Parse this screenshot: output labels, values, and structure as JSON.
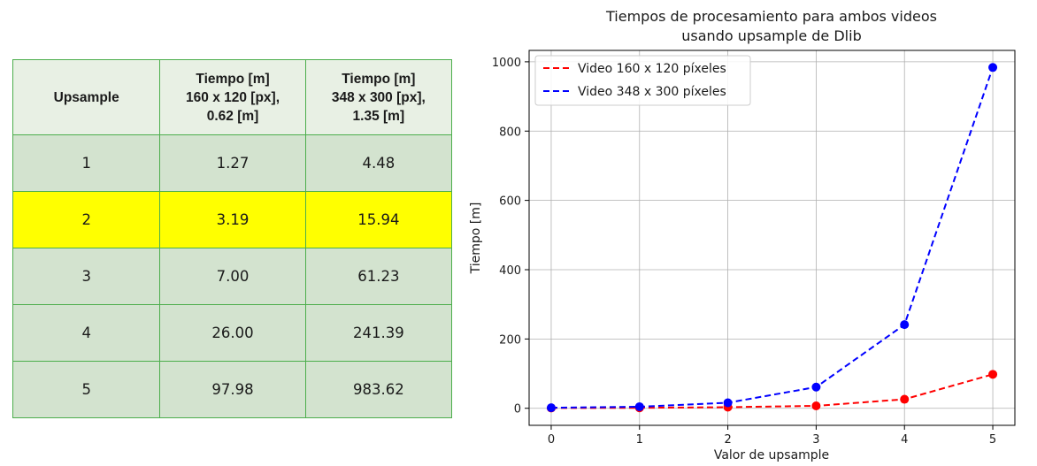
{
  "table": {
    "headers": [
      [
        "Upsample"
      ],
      [
        "Tiempo [m]",
        "160 x 120 [px],",
        "0.62 [m]"
      ],
      [
        "Tiempo [m]",
        "348 x 300 [px],",
        "1.35 [m]"
      ]
    ],
    "rows": [
      [
        "1",
        "1.27",
        "4.48"
      ],
      [
        "2",
        "3.19",
        "15.94"
      ],
      [
        "3",
        "7.00",
        "61.23"
      ],
      [
        "4",
        "26.00",
        "241.39"
      ],
      [
        "5",
        "97.98",
        "983.62"
      ]
    ],
    "highlight_row": 1,
    "highlight_color": "#ffff00"
  },
  "chart_data": {
    "type": "line",
    "title": [
      "Tiempos de procesamiento para ambos videos",
      "usando upsample de Dlib"
    ],
    "xlabel": "Valor de upsample",
    "ylabel": "Tiempo [m]",
    "x": [
      0,
      1,
      2,
      3,
      4,
      5
    ],
    "xticks": [
      "0",
      "1",
      "2",
      "3",
      "4",
      "5"
    ],
    "yticks": [
      "0",
      "200",
      "400",
      "600",
      "800",
      "1000"
    ],
    "xlim": [
      -0.25,
      5.25
    ],
    "ylim": [
      -49.2,
      1032.9
    ],
    "grid": true,
    "legend_position": "top-left",
    "line_style": "dashed",
    "series": [
      {
        "name": "Video 160 x 120 píxeles",
        "color": "#ff0000",
        "values": [
          0.8,
          1.27,
          3.19,
          7.0,
          26.0,
          97.98
        ]
      },
      {
        "name": "Video 348 x 300 píxeles",
        "color": "#0000ff",
        "values": [
          1.5,
          4.48,
          15.94,
          61.23,
          241.39,
          983.62
        ]
      }
    ]
  }
}
